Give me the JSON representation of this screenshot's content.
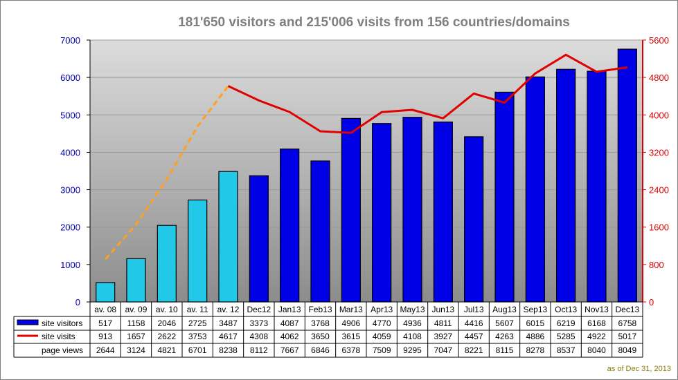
{
  "title": "181'650 visitors and 215'006 visits from 156 countries/domains",
  "footnote": "as of Dec 31, 2013",
  "colors": {
    "visitors_bar_dark": "#0000e6",
    "visitors_bar_light": "#22c8e8",
    "visits_line": "#e00000",
    "visits_dashed": "#ffa020",
    "left_axis": "#0000b0",
    "right_axis": "#e00000"
  },
  "chart_data": {
    "type": "bar",
    "categories": [
      "av. 08",
      "av. 09",
      "av. 10",
      "av. 11",
      "av. 12",
      "Dec12",
      "Jan13",
      "Feb13",
      "Mar13",
      "Apr13",
      "May13",
      "Jun13",
      "Jul13",
      "Aug13",
      "Sep13",
      "Oct13",
      "Nov13",
      "Dec13"
    ],
    "series": [
      {
        "name": "site visitors",
        "kind": "bar",
        "axis": "left",
        "values": [
          517,
          1158,
          2046,
          2725,
          3487,
          3373,
          4087,
          3768,
          4906,
          4770,
          4936,
          4811,
          4416,
          5607,
          6015,
          6219,
          6168,
          6758
        ]
      },
      {
        "name": "site visits",
        "kind": "line",
        "axis": "right",
        "values": [
          913,
          1657,
          2622,
          3753,
          4617,
          4308,
          4062,
          3650,
          3615,
          4059,
          4108,
          3927,
          4457,
          4263,
          4886,
          5285,
          4922,
          5017
        ]
      },
      {
        "name": "page views",
        "kind": "table-only",
        "values": [
          2644,
          3124,
          4821,
          6701,
          8238,
          8112,
          7667,
          6846,
          6378,
          7509,
          9295,
          7047,
          8221,
          8115,
          8278,
          8537,
          8040,
          8049
        ]
      }
    ],
    "left_axis": {
      "min": 0,
      "max": 7000,
      "ticks": [
        0,
        1000,
        2000,
        3000,
        4000,
        5000,
        6000,
        7000
      ]
    },
    "right_axis": {
      "min": 0,
      "max": 5600,
      "ticks": [
        0,
        800,
        1600,
        2400,
        3200,
        4000,
        4800,
        5600
      ]
    },
    "legend": "data-table-below"
  }
}
